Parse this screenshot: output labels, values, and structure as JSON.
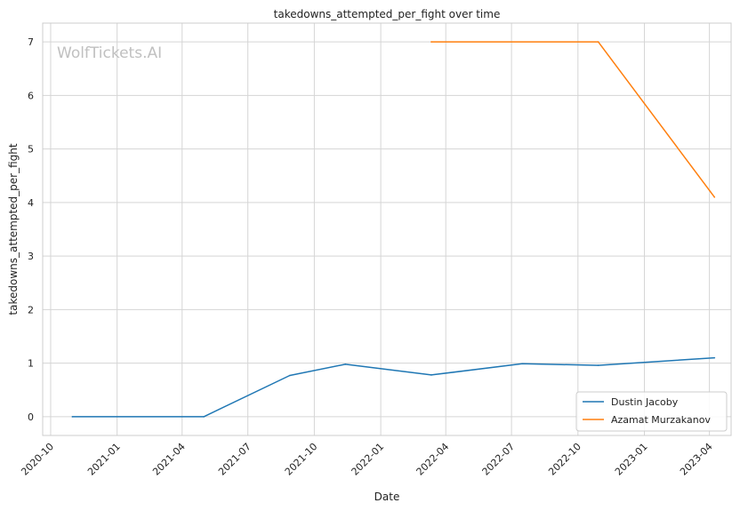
{
  "chart_data": {
    "type": "line",
    "title": "takedowns_attempted_per_fight over time",
    "xlabel": "Date",
    "ylabel": "takedowns_attempted_per_fight",
    "watermark": "WolfTickets.AI",
    "x_ticks": [
      "2020-10",
      "2021-01",
      "2021-04",
      "2021-07",
      "2021-10",
      "2022-01",
      "2022-04",
      "2022-07",
      "2022-10",
      "2023-01",
      "2023-04"
    ],
    "y_ticks": [
      0,
      1,
      2,
      3,
      4,
      5,
      6,
      7
    ],
    "xlim": [
      "2020-09-20",
      "2023-05-01"
    ],
    "ylim": [
      -0.35,
      7.35
    ],
    "grid": true,
    "legend_position": "bottom-right",
    "series": [
      {
        "name": "Dustin Jacoby",
        "color": "#1f77b4",
        "points": [
          {
            "x": "2020-10-31",
            "y": 0
          },
          {
            "x": "2021-05-01",
            "y": 0
          },
          {
            "x": "2021-08-28",
            "y": 0.77
          },
          {
            "x": "2021-11-13",
            "y": 0.98
          },
          {
            "x": "2022-03-12",
            "y": 0.78
          },
          {
            "x": "2022-07-16",
            "y": 0.99
          },
          {
            "x": "2022-10-29",
            "y": 0.96
          },
          {
            "x": "2023-04-08",
            "y": 1.1
          }
        ]
      },
      {
        "name": "Azamat Murzakanov",
        "color": "#ff7f0e",
        "points": [
          {
            "x": "2022-03-12",
            "y": 7
          },
          {
            "x": "2022-10-29",
            "y": 7
          },
          {
            "x": "2023-04-08",
            "y": 4.1
          }
        ]
      }
    ]
  }
}
